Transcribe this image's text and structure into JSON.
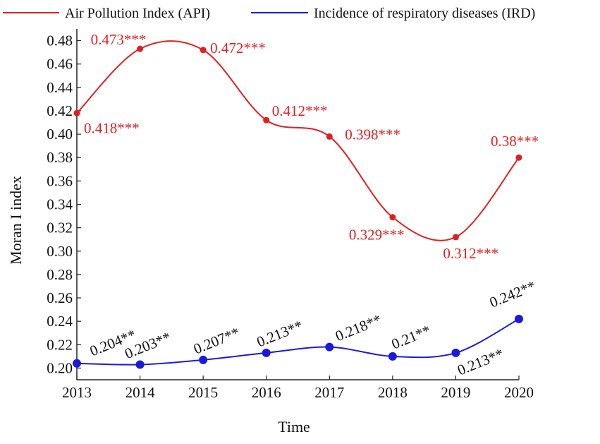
{
  "chart_data": {
    "type": "line",
    "title": "",
    "xlabel": "Time",
    "ylabel": "Moran I index",
    "x": [
      2013,
      2014,
      2015,
      2016,
      2017,
      2018,
      2019,
      2020
    ],
    "x_tick_labels": [
      "2013",
      "2014",
      "2015",
      "2016",
      "2017",
      "2018",
      "2019",
      "2020"
    ],
    "ylim": [
      0.19,
      0.49
    ],
    "y_ticks": [
      0.2,
      0.22,
      0.24,
      0.26,
      0.28,
      0.3,
      0.32,
      0.34,
      0.36,
      0.38,
      0.4,
      0.42,
      0.44,
      0.46,
      0.48
    ],
    "y_tick_labels": [
      "0.20",
      "0.22",
      "0.24",
      "0.26",
      "0.28",
      "0.30",
      "0.32",
      "0.34",
      "0.36",
      "0.38",
      "0.40",
      "0.42",
      "0.44",
      "0.46",
      "0.48"
    ],
    "grid": false,
    "legend_position": "top",
    "series": [
      {
        "name": "Air Pollution Index (API)",
        "color": "#e02020",
        "values": [
          0.418,
          0.473,
          0.472,
          0.412,
          0.398,
          0.329,
          0.312,
          0.38
        ],
        "labels": [
          "0.418***",
          "0.473***",
          "0.472***",
          "0.412***",
          "0.398***",
          "0.329***",
          "0.312***",
          "0.38***"
        ]
      },
      {
        "name": "Incidence of respiratory diseases (IRD)",
        "color": "#1a1adf",
        "values": [
          0.204,
          0.203,
          0.207,
          0.213,
          0.218,
          0.21,
          0.213,
          0.242
        ],
        "labels": [
          "0.204**",
          "0.203**",
          "0.207**",
          "0.213**",
          "0.218**",
          "0.21**",
          "0.213**",
          "0.242**"
        ]
      }
    ]
  }
}
